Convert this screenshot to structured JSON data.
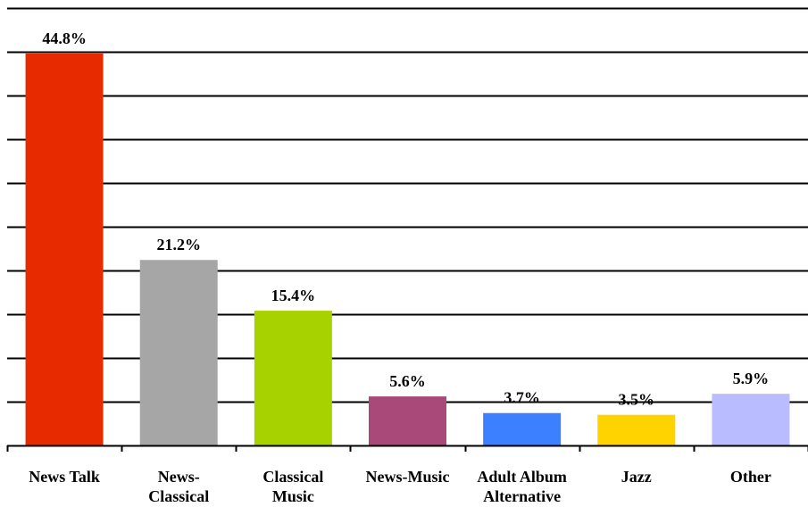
{
  "chart_data": {
    "type": "bar",
    "categories": [
      "News Talk",
      "News-Classical",
      "Classical Music",
      "News-Music",
      "Adult Album Alternative",
      "Jazz",
      "Other"
    ],
    "category_lines": [
      [
        "News Talk"
      ],
      [
        "News-",
        "Classical"
      ],
      [
        "Classical",
        "Music"
      ],
      [
        "News-Music"
      ],
      [
        "Adult Album",
        "Alternative"
      ],
      [
        "Jazz"
      ],
      [
        "Other"
      ]
    ],
    "values": [
      44.8,
      21.2,
      15.4,
      5.6,
      3.7,
      3.5,
      5.9
    ],
    "data_labels": [
      "44.8%",
      "21.2%",
      "15.4%",
      "5.6%",
      "3.7%",
      "3.5%",
      "5.9%"
    ],
    "colors": [
      "#e82a00",
      "#a6a6a6",
      "#a8d100",
      "#a8497a",
      "#3d80ff",
      "#ffd300",
      "#b9bcff"
    ],
    "ylim": [
      0,
      50
    ],
    "grid_step": 5,
    "grid": true,
    "legend": "none"
  }
}
